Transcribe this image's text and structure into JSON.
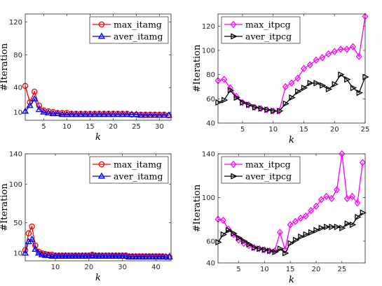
{
  "chart_data": [
    {
      "type": "line",
      "xlabel": "k",
      "ylabel": "#Iteration",
      "xlim": [
        1,
        32.5
      ],
      "ylim": [
        0,
        130
      ],
      "xticks": [
        5,
        10,
        15,
        20,
        25,
        30
      ],
      "yticks": [
        10,
        40,
        80,
        120
      ],
      "legend_position": "top-right",
      "x": [
        1,
        2,
        3,
        4,
        5,
        6,
        7,
        8,
        9,
        10,
        11,
        12,
        13,
        14,
        15,
        16,
        17,
        18,
        19,
        20,
        21,
        22,
        23,
        24,
        25,
        26,
        27,
        28,
        29,
        30,
        31,
        32
      ],
      "series": [
        {
          "name": "max_itamg",
          "color": "#ff0000",
          "marker": "circle",
          "values": [
            42,
            22,
            35,
            18,
            12,
            11,
            10,
            9,
            9,
            9,
            8,
            8,
            8,
            8,
            8,
            8,
            8,
            8,
            8,
            8,
            8,
            8,
            8,
            7,
            7,
            7,
            7,
            7,
            7,
            7,
            7,
            6
          ]
        },
        {
          "name": "aver_itamg",
          "color": "#0000ff",
          "marker": "triangle",
          "values": [
            11,
            18,
            26,
            13,
            10,
            9,
            8,
            8,
            7,
            7,
            7,
            7,
            7,
            7,
            7,
            7,
            7,
            7,
            7,
            7,
            7,
            7,
            7,
            7,
            7,
            6,
            6,
            6,
            6,
            6,
            6,
            6
          ]
        }
      ]
    },
    {
      "type": "line",
      "xlabel": "k",
      "ylabel": "#Iteration",
      "xlim": [
        1,
        25
      ],
      "ylim": [
        40,
        130
      ],
      "xticks": [
        5,
        10,
        15,
        20,
        25
      ],
      "yticks": [
        40,
        60,
        80,
        100,
        120
      ],
      "legend_position": "top-left",
      "x": [
        1,
        2,
        3,
        4,
        5,
        6,
        7,
        8,
        9,
        10,
        11,
        12,
        13,
        14,
        15,
        16,
        17,
        18,
        19,
        20,
        21,
        22,
        23,
        24,
        25
      ],
      "series": [
        {
          "name": "max_itpcg",
          "color": "#ff00ff",
          "marker": "diamond",
          "values": [
            75,
            76,
            69,
            62,
            57,
            55,
            53,
            52,
            51,
            50,
            50,
            70,
            73,
            77,
            85,
            88,
            92,
            94,
            97,
            99,
            101,
            101,
            103,
            95,
            128
          ]
        },
        {
          "name": "aver_itpcg",
          "color": "#000000",
          "marker": "triangle-right",
          "values": [
            57,
            59,
            67,
            61,
            57,
            55,
            53,
            52,
            51,
            50,
            50,
            56,
            61,
            66,
            69,
            73,
            73,
            71,
            68,
            72,
            80,
            76,
            69,
            65,
            78
          ]
        }
      ]
    },
    {
      "type": "line",
      "xlabel": "k",
      "ylabel": "#Iteration",
      "xlim": [
        1,
        44.5
      ],
      "ylim": [
        0,
        140
      ],
      "xticks": [
        10,
        20,
        30,
        40
      ],
      "yticks": [
        10,
        50,
        100,
        140
      ],
      "legend_position": "top-right",
      "x": [
        1,
        2,
        3,
        4,
        5,
        6,
        7,
        8,
        9,
        10,
        11,
        12,
        13,
        14,
        15,
        16,
        17,
        18,
        19,
        20,
        21,
        22,
        23,
        24,
        25,
        26,
        27,
        28,
        29,
        30,
        31,
        32,
        33,
        34,
        35,
        36,
        37,
        38,
        39,
        40,
        41,
        42,
        43,
        44
      ],
      "series": [
        {
          "name": "max_itamg",
          "color": "#ff0000",
          "marker": "circle",
          "values": [
            14,
            36,
            45,
            20,
            12,
            10,
            9,
            8,
            8,
            7,
            7,
            7,
            7,
            7,
            7,
            7,
            7,
            7,
            7,
            7,
            8,
            7,
            7,
            7,
            7,
            7,
            7,
            7,
            7,
            7,
            7,
            6,
            6,
            6,
            6,
            6,
            6,
            6,
            6,
            6,
            6,
            6,
            5,
            5
          ]
        },
        {
          "name": "aver_itamg",
          "color": "#0000ff",
          "marker": "triangle",
          "values": [
            10,
            25,
            28,
            15,
            10,
            8,
            7,
            7,
            6,
            6,
            6,
            6,
            6,
            6,
            6,
            6,
            6,
            6,
            6,
            6,
            7,
            6,
            6,
            6,
            6,
            6,
            6,
            6,
            6,
            6,
            6,
            5,
            5,
            5,
            5,
            5,
            5,
            5,
            5,
            5,
            5,
            5,
            5,
            5
          ]
        }
      ]
    },
    {
      "type": "line",
      "xlabel": "k",
      "ylabel": "#Iteration",
      "xlim": [
        1,
        29.5
      ],
      "ylim": [
        40,
        140
      ],
      "xticks": [
        5,
        10,
        15,
        20,
        25
      ],
      "yticks": [
        40,
        60,
        100,
        140
      ],
      "legend_position": "top-left",
      "x": [
        1,
        2,
        3,
        4,
        5,
        6,
        7,
        8,
        9,
        10,
        11,
        12,
        13,
        14,
        15,
        16,
        17,
        18,
        19,
        20,
        21,
        22,
        23,
        24,
        25,
        26,
        27,
        28,
        29
      ],
      "series": [
        {
          "name": "max_itpcg",
          "color": "#ff00ff",
          "marker": "diamond",
          "values": [
            80,
            79,
            71,
            66,
            61,
            58,
            56,
            54,
            53,
            52,
            51,
            51,
            68,
            52,
            75,
            78,
            81,
            83,
            88,
            92,
            98,
            101,
            99,
            107,
            140,
            99,
            101,
            95,
            132
          ]
        },
        {
          "name": "aver_itpcg",
          "color": "#000000",
          "marker": "triangle-right",
          "values": [
            59,
            66,
            70,
            67,
            63,
            60,
            57,
            54,
            53,
            52,
            51,
            50,
            53,
            49,
            58,
            61,
            64,
            66,
            68,
            70,
            72,
            73,
            73,
            73,
            72,
            76,
            75,
            82,
            86
          ]
        }
      ]
    }
  ]
}
